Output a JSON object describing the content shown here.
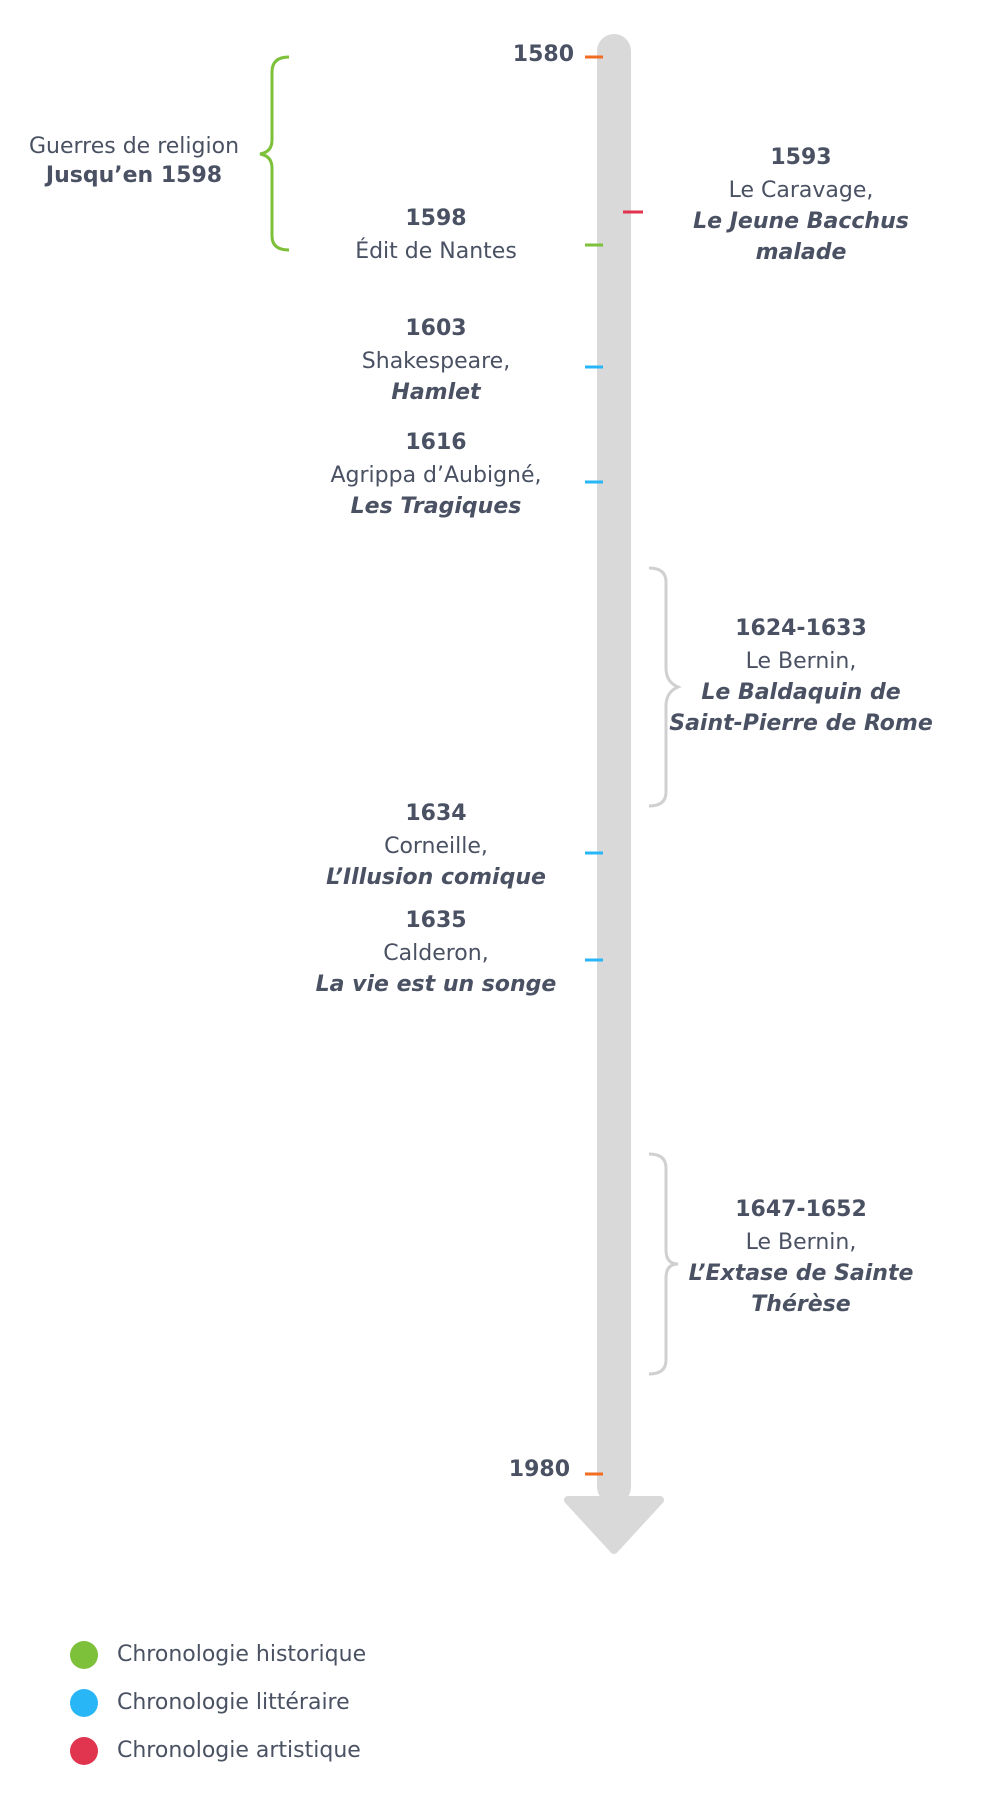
{
  "timeline": {
    "start": "1580",
    "end": "1980",
    "period": {
      "label": "Guerres de religion",
      "until": "Jusqu’en 1598"
    },
    "events": [
      {
        "year": "1598",
        "text": "Édit de Nantes"
      },
      {
        "year": "1593",
        "author": "Le Caravage,",
        "work": [
          "Le Jeune Bacchus",
          "malade"
        ]
      },
      {
        "year": "1603",
        "author": "Shakespeare,",
        "work": [
          "Hamlet"
        ]
      },
      {
        "year": "1616",
        "author": "Agrippa d’Aubigné,",
        "work": [
          "Les Tragiques"
        ]
      },
      {
        "year": "1624-1633",
        "author": "Le Bernin,",
        "work": [
          "Le Baldaquin de",
          "Saint-Pierre de Rome"
        ]
      },
      {
        "year": "1634",
        "author": "Corneille,",
        "work": [
          "L’Illusion comique"
        ]
      },
      {
        "year": "1635",
        "author": "Calderon,",
        "work": [
          "La vie est un songe"
        ]
      },
      {
        "year": "1647-1652",
        "author": "Le Bernin,",
        "work": [
          "L’Extase de Sainte",
          "Thérèse"
        ]
      }
    ]
  },
  "legend": [
    "Chronologie historique",
    "Chronologie littéraire",
    "Chronologie artistique"
  ]
}
